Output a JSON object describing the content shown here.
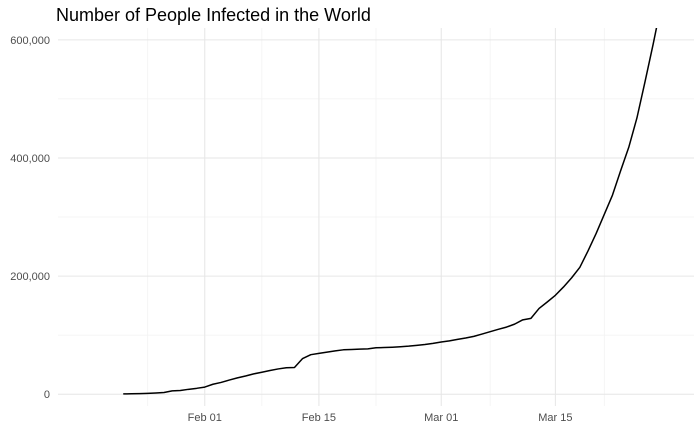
{
  "chart_data": {
    "type": "line",
    "title": "Number of People Infected in the World",
    "xlabel": "",
    "ylabel": "",
    "x_type": "date",
    "xlim": [
      "2020-01-14",
      "2020-04-01"
    ],
    "ylim": [
      -20000,
      620000
    ],
    "x_ticks": [
      {
        "date": "2020-02-01",
        "label": "Feb 01"
      },
      {
        "date": "2020-02-15",
        "label": "Feb 15"
      },
      {
        "date": "2020-03-01",
        "label": "Mar 01"
      },
      {
        "date": "2020-03-15",
        "label": "Mar 15"
      }
    ],
    "y_ticks": [
      {
        "value": 0,
        "label": "0"
      },
      {
        "value": 200000,
        "label": "200,000"
      },
      {
        "value": 400000,
        "label": "400,000"
      },
      {
        "value": 600000,
        "label": "600,000"
      }
    ],
    "grid": true,
    "line_color": "#000000",
    "series": [
      {
        "x": [
          "2020-01-22",
          "2020-01-23",
          "2020-01-24",
          "2020-01-25",
          "2020-01-26",
          "2020-01-27",
          "2020-01-28",
          "2020-01-29",
          "2020-01-30",
          "2020-01-31",
          "2020-02-01",
          "2020-02-02",
          "2020-02-03",
          "2020-02-04",
          "2020-02-05",
          "2020-02-06",
          "2020-02-07",
          "2020-02-08",
          "2020-02-09",
          "2020-02-10",
          "2020-02-11",
          "2020-02-12",
          "2020-02-13",
          "2020-02-14",
          "2020-02-15",
          "2020-02-16",
          "2020-02-17",
          "2020-02-18",
          "2020-02-19",
          "2020-02-20",
          "2020-02-21",
          "2020-02-22",
          "2020-02-23",
          "2020-02-24",
          "2020-02-25",
          "2020-02-26",
          "2020-02-27",
          "2020-02-28",
          "2020-02-29",
          "2020-03-01",
          "2020-03-02",
          "2020-03-03",
          "2020-03-04",
          "2020-03-05",
          "2020-03-06",
          "2020-03-07",
          "2020-03-08",
          "2020-03-09",
          "2020-03-10",
          "2020-03-11",
          "2020-03-12",
          "2020-03-13",
          "2020-03-14",
          "2020-03-15",
          "2020-03-16",
          "2020-03-17",
          "2020-03-18",
          "2020-03-19",
          "2020-03-20",
          "2020-03-21",
          "2020-03-22",
          "2020-03-23",
          "2020-03-24",
          "2020-03-25",
          "2020-03-26",
          "2020-03-27",
          "2020-03-28"
        ],
        "values": [
          555,
          654,
          941,
          1434,
          2118,
          2927,
          5578,
          6166,
          8234,
          9927,
          12038,
          16787,
          19881,
          23892,
          27635,
          30794,
          34391,
          37120,
          40150,
          42762,
          44802,
          45221,
          60368,
          66885,
          69030,
          71224,
          73258,
          75136,
          75639,
          76197,
          76819,
          78572,
          78958,
          79561,
          80406,
          81388,
          82746,
          84112,
          86011,
          88369,
          90306,
          92840,
          95120,
          97886,
          101801,
          105847,
          109821,
          113590,
          118620,
          125875,
          128352,
          145205,
          156101,
          167454,
          181574,
          197102,
          214821,
          242570,
          272208,
          304507,
          336953,
          378235,
          418045,
          467653,
          529591,
          593291,
          660706
        ]
      }
    ]
  }
}
